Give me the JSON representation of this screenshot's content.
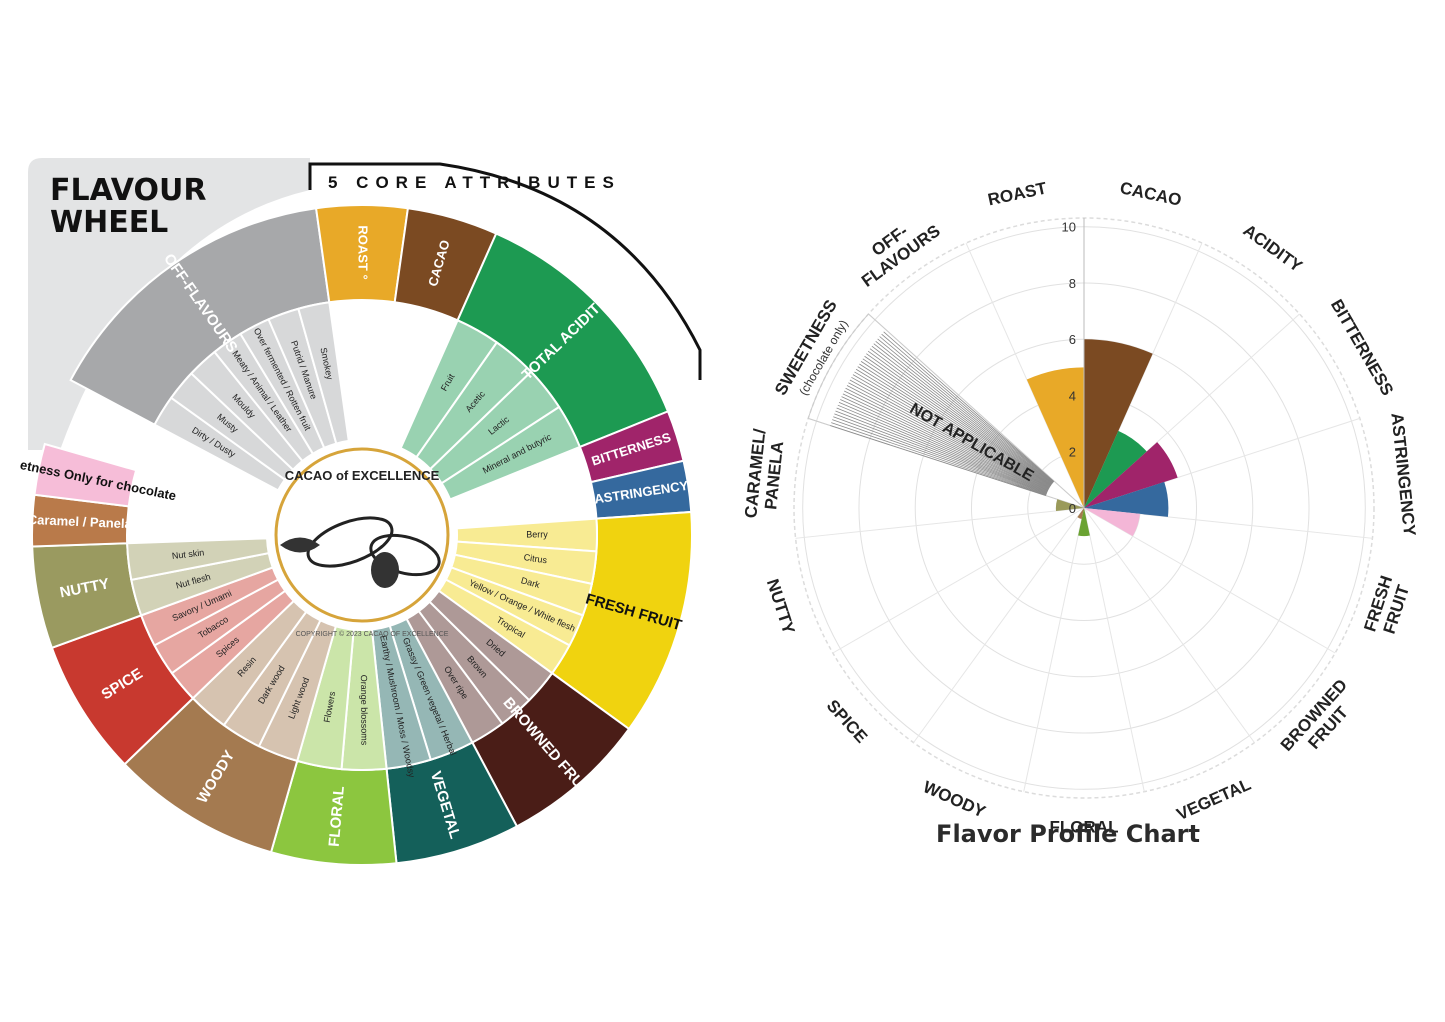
{
  "wheel": {
    "title_line1": "FLAVOUR",
    "title_line2": "WHEEL",
    "core_banner": "5 CORE ATTRIBUTES",
    "logo_text": "CACAO of EXCELLENCE",
    "copyright": "COPYRIGHT © 2023 CACAO OF EXCELLENCE",
    "categories": [
      {
        "label": "OFF-FLAVOURS",
        "color": "#a7a8aa",
        "sub": [
          "Dirty / Dusty",
          "Musty",
          "Mouldy",
          "Meaty / Animal / Leather",
          "Over fermented / Rotten fruit",
          "Putrid / Manure",
          "Smokey"
        ]
      },
      {
        "label": "ROAST °",
        "color": "#e8a928",
        "sub": []
      },
      {
        "label": "CACAO",
        "color": "#7b4a22",
        "sub": []
      },
      {
        "label": "TOTAL ACIDITY",
        "color": "#1d9a52",
        "sub": [
          "Fruit",
          "Acetic",
          "Lactic",
          "Mineral and butyric"
        ]
      },
      {
        "label": "BITTERNESS",
        "color": "#a0246a",
        "sub": []
      },
      {
        "label": "ASTRINGENCY",
        "color": "#35699e",
        "sub": []
      },
      {
        "label": "FRESH FRUIT",
        "color": "#f0d30f",
        "sub": [
          "Berry",
          "Citrus",
          "Dark",
          "Yellow / Orange / White flesh",
          "Tropical"
        ]
      },
      {
        "label": "BROWNED FRUIT",
        "color": "#4a1d17",
        "sub": [
          "Dried",
          "Brown",
          "Over ripe"
        ]
      },
      {
        "label": "VEGETAL",
        "color": "#14605a",
        "sub": [
          "Grassy / Green vegetal / Herbal",
          "Earthy / Mushroom / Moss / Woodsy"
        ]
      },
      {
        "label": "FLORAL",
        "color": "#8cc63f",
        "sub": [
          "Orange blossoms",
          "Flowers"
        ]
      },
      {
        "label": "WOODY",
        "color": "#a47a50",
        "sub": [
          "Light wood",
          "Dark wood",
          "Resin"
        ]
      },
      {
        "label": "SPICE",
        "color": "#c8392f",
        "sub": [
          "Spices",
          "Tobacco",
          "Savory / Umami"
        ]
      },
      {
        "label": "NUTTY",
        "color": "#9a9a60",
        "sub": [
          "Nut flesh",
          "Nut skin"
        ]
      },
      {
        "label": "Caramel / Panela",
        "color": "#b97a4a",
        "sub": []
      },
      {
        "label": "Sweetness",
        "note": "Only for chocolate",
        "color": "#f6bdd8",
        "sub": []
      }
    ]
  },
  "chart_data": {
    "type": "polar-bar",
    "title": "Flavor Profile Chart",
    "radial_axis": {
      "range": [
        0,
        10
      ],
      "ticks": [
        0,
        2,
        4,
        6,
        8,
        10
      ]
    },
    "not_applicable_label": "NOT APPLICABLE",
    "categories": [
      {
        "label": "CACAO",
        "value": 6,
        "color": "#7b4a22"
      },
      {
        "label": "ACIDITY",
        "value": 3,
        "color": "#1d9a52"
      },
      {
        "label": "BITTERNESS",
        "value": 3.5,
        "color": "#a0246a"
      },
      {
        "label": "ASTRINGENCY",
        "value": 3,
        "color": "#35699e"
      },
      {
        "label": "FRESH FRUIT",
        "value": 2,
        "color": "#f4b6d7"
      },
      {
        "label": "BROWNED FRUIT",
        "value": 0,
        "color": "#4a1d17"
      },
      {
        "label": "VEGETAL",
        "value": 0,
        "color": "#14605a"
      },
      {
        "label": "FLORAL",
        "value": 1,
        "color": "#6aa232"
      },
      {
        "label": "WOODY",
        "value": 0.4,
        "color": "#a47a50"
      },
      {
        "label": "SPICE",
        "value": 0,
        "color": "#c8392f"
      },
      {
        "label": "NUTTY",
        "value": 0,
        "color": "#9a9a60"
      },
      {
        "label": "CARAMEL/ PANELA",
        "value": 1,
        "color": "#9a9a5a"
      },
      {
        "label": "SWEETNESS",
        "sub": "(chocolate only)",
        "value": null,
        "color": "#999999"
      },
      {
        "label": "OFF- FLAVOURS",
        "value": 0,
        "color": "#a7a8aa"
      },
      {
        "label": "ROAST",
        "value": 5,
        "color": "#e8a928"
      }
    ],
    "grid": true
  }
}
